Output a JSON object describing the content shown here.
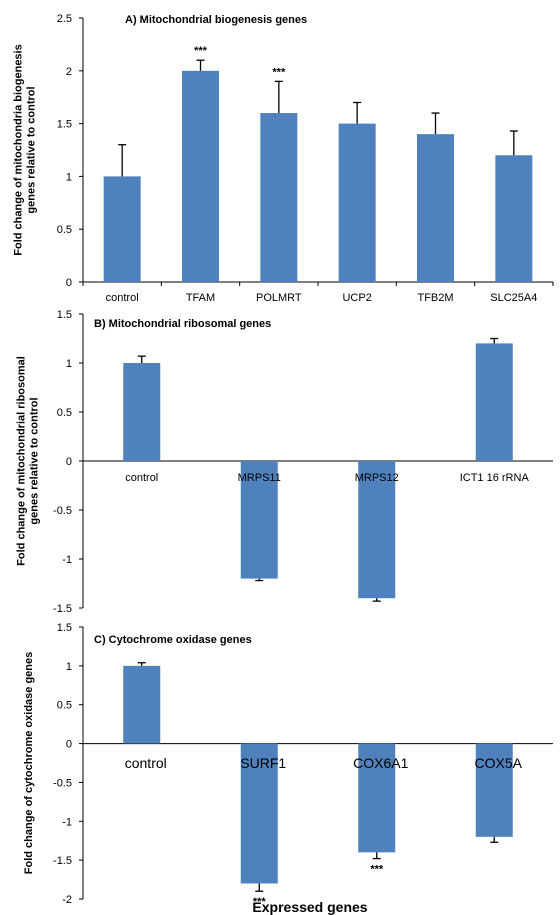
{
  "chart_data": [
    {
      "type": "bar",
      "title": "A) Mitochondrial biogenesis genes",
      "ylabel": [
        "Fold change of mitochondria biogenesis",
        "genes relative to control"
      ],
      "xlabel": "",
      "ylim": [
        0,
        2.5
      ],
      "yticks": [
        "0",
        "0.5",
        "1",
        "1.5",
        "2",
        "2.5"
      ],
      "color": "#4f81bd",
      "categories": [
        "control",
        "TFAM",
        "POLMRT",
        "UCP2",
        "TFB2M",
        "SLC25A4"
      ],
      "values": [
        1.0,
        2.0,
        1.6,
        1.5,
        1.4,
        1.2
      ],
      "errors": [
        0.3,
        0.1,
        0.3,
        0.2,
        0.2,
        0.23
      ],
      "significance": [
        "",
        "***",
        "***",
        "",
        "",
        ""
      ]
    },
    {
      "type": "bar",
      "title": "B) Mitochondrial ribosomal genes",
      "ylabel": [
        "Fold change of mitochondrial ribosomal",
        "genes relative to control"
      ],
      "xlabel": "",
      "ylim": [
        -1.5,
        1.5
      ],
      "yticks": [
        "-1.5",
        "-1",
        "-0.5",
        "0",
        "0.5",
        "1",
        "1.5"
      ],
      "color": "#4f81bd",
      "categories": [
        "control",
        "MRPS11",
        "MRPS12",
        "ICT1 16 rRNA"
      ],
      "values": [
        1.0,
        -1.2,
        -1.4,
        1.2
      ],
      "errors": [
        0.07,
        0.02,
        0.03,
        0.05
      ],
      "significance": [
        "",
        "",
        "",
        ""
      ]
    },
    {
      "type": "bar",
      "title": "C) Cytochrome oxidase genes",
      "ylabel": [
        "Fold change of cytochrome oxidase genes"
      ],
      "xlabel": "Expressed genes",
      "ylim": [
        -2,
        1.5
      ],
      "yticks": [
        "-2",
        "-1.5",
        "-1",
        "-0.5",
        "0",
        "0.5",
        "1",
        "1.5"
      ],
      "color": "#4f81bd",
      "categories": [
        "control",
        "SURF1",
        "COX6A1",
        "COX5A"
      ],
      "values": [
        1.0,
        -1.8,
        -1.4,
        -1.2
      ],
      "errors": [
        0.04,
        0.1,
        0.08,
        0.07
      ],
      "significance": [
        "",
        "***",
        "***",
        ""
      ]
    }
  ]
}
